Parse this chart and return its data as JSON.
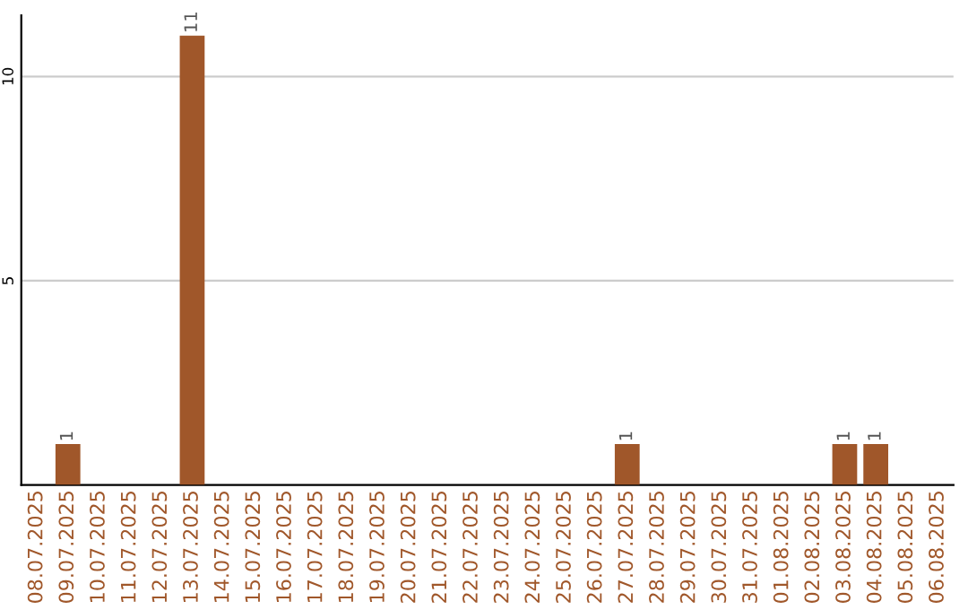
{
  "chart_data": {
    "type": "bar",
    "categories": [
      "08.07.2025",
      "09.07.2025",
      "10.07.2025",
      "11.07.2025",
      "12.07.2025",
      "13.07.2025",
      "14.07.2025",
      "15.07.2025",
      "16.07.2025",
      "17.07.2025",
      "18.07.2025",
      "19.07.2025",
      "20.07.2025",
      "21.07.2025",
      "22.07.2025",
      "23.07.2025",
      "24.07.2025",
      "25.07.2025",
      "26.07.2025",
      "27.07.2025",
      "28.07.2025",
      "29.07.2025",
      "30.07.2025",
      "31.07.2025",
      "01.08.2025",
      "02.08.2025",
      "03.08.2025",
      "04.08.2025",
      "05.08.2025",
      "06.08.2025"
    ],
    "values": [
      0,
      1,
      0,
      0,
      0,
      11,
      0,
      0,
      0,
      0,
      0,
      0,
      0,
      0,
      0,
      0,
      0,
      0,
      0,
      1,
      0,
      0,
      0,
      0,
      0,
      0,
      1,
      1,
      0,
      0
    ],
    "value_labels": [
      null,
      "1",
      null,
      null,
      null,
      "11",
      null,
      null,
      null,
      null,
      null,
      null,
      null,
      null,
      null,
      null,
      null,
      null,
      null,
      "1",
      null,
      null,
      null,
      null,
      null,
      null,
      "1",
      "1",
      null,
      null
    ],
    "color": "#a0572a",
    "ylim": [
      0,
      11.5
    ],
    "yticks": [
      5,
      10
    ],
    "grid": "y"
  }
}
